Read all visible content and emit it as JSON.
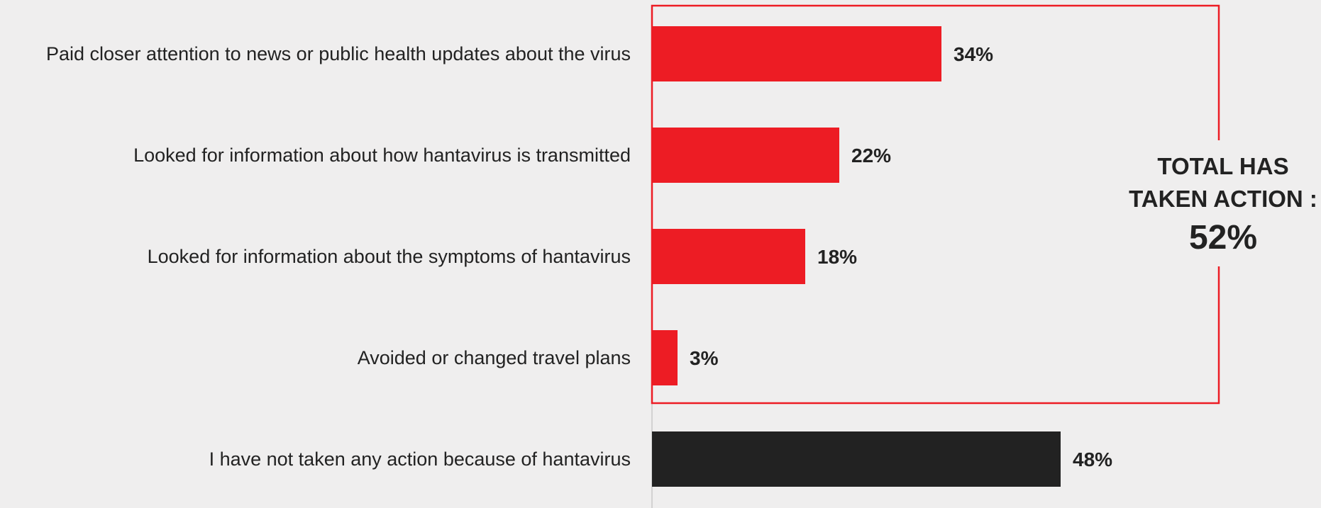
{
  "chart_data": {
    "type": "bar",
    "orientation": "horizontal",
    "categories": [
      "Paid closer attention to news or public health updates about the virus",
      "Looked for information about how hantavirus is transmitted",
      "Looked for information about the symptoms of hantavirus",
      "Avoided or changed travel plans",
      "I have not taken any action because of hantavirus"
    ],
    "values": [
      34,
      22,
      18,
      3,
      48
    ],
    "value_labels": [
      "34%",
      "22%",
      "18%",
      "3%",
      "48%"
    ],
    "bar_colors": [
      "#ed1c24",
      "#ed1c24",
      "#ed1c24",
      "#ed1c24",
      "#222222"
    ],
    "unit": "%",
    "xlim": [
      0,
      100
    ],
    "grid": false,
    "legend": "none",
    "callout": {
      "line1": "TOTAL HAS",
      "line2": "TAKEN ACTION :",
      "value": "52%",
      "box_color": "#ed1c24",
      "groups_covered": [
        0,
        1,
        2,
        3
      ]
    }
  },
  "colors": {
    "background": "#efeeee",
    "accent": "#ed1c24",
    "dark": "#222222",
    "axis": "#c8c8c8"
  }
}
